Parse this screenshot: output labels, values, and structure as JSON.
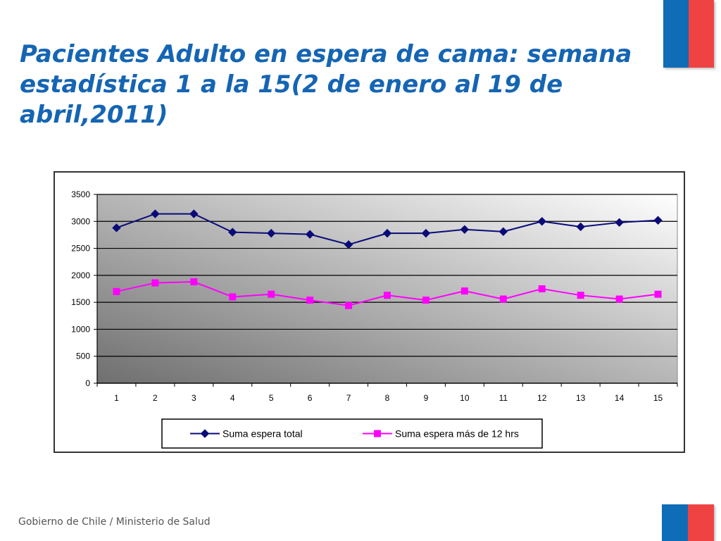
{
  "slide": {
    "title": "Pacientes Adulto en espera de cama: semana estadística 1 a la 15(2 de enero al 19 de abril,2011)",
    "footer": "Gobierno de Chile / Ministerio de Salud"
  },
  "colors": {
    "title": "#1565b3",
    "flag_blue": "#0f6cb6",
    "flag_red": "#ef4343",
    "series1": "#0a0a78",
    "series2": "#ff00ff"
  },
  "chart_data": {
    "type": "line",
    "title": "",
    "xlabel": "",
    "ylabel": "",
    "categories": [
      "1",
      "2",
      "3",
      "4",
      "5",
      "6",
      "7",
      "8",
      "9",
      "10",
      "11",
      "12",
      "13",
      "14",
      "15"
    ],
    "yticks": [
      "0",
      "500",
      "1000",
      "1500",
      "2000",
      "2500",
      "3000",
      "3500"
    ],
    "ylim": [
      0,
      3500
    ],
    "grid": true,
    "legend": "bottom",
    "series": [
      {
        "name": "Suma espera total",
        "marker": "diamond",
        "color": "#0a0a78",
        "values": [
          2880,
          3140,
          3140,
          2800,
          2780,
          2760,
          2570,
          2780,
          2780,
          2850,
          2810,
          3000,
          2900,
          2980,
          3020
        ]
      },
      {
        "name": "Suma espera más de 12 hrs",
        "marker": "square",
        "color": "#ff00ff",
        "values": [
          1700,
          1860,
          1880,
          1600,
          1650,
          1540,
          1440,
          1630,
          1540,
          1710,
          1560,
          1750,
          1630,
          1560,
          1650
        ]
      }
    ]
  }
}
